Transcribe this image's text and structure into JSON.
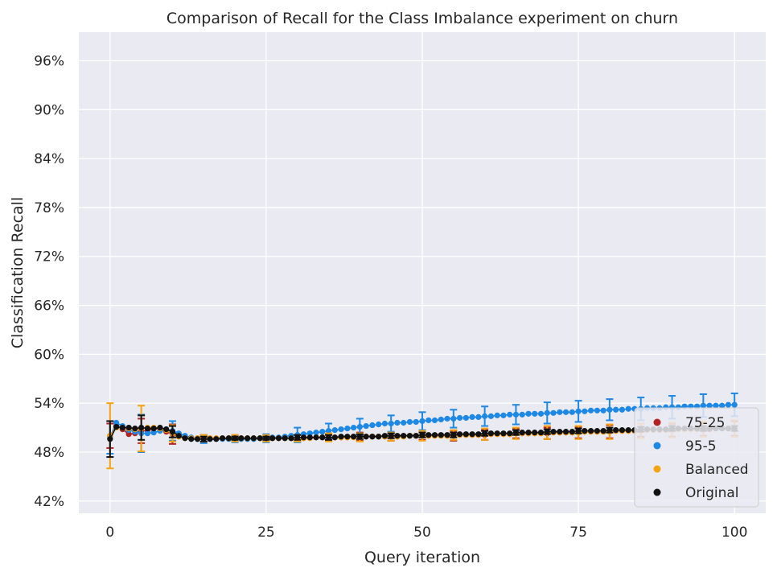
{
  "chart_data": {
    "type": "scatter",
    "title": "Comparison of Recall for the Class Imbalance experiment on churn",
    "xlabel": "Query iteration",
    "ylabel": "Classification Recall",
    "xlim": [
      -5,
      105
    ],
    "ylim": [
      40.5,
      99.5
    ],
    "x_ticks": [
      0,
      25,
      50,
      75,
      100
    ],
    "x_tick_labels": [
      "0",
      "25",
      "50",
      "75",
      "100"
    ],
    "y_ticks": [
      42,
      48,
      54,
      60,
      66,
      72,
      78,
      84,
      90,
      96
    ],
    "y_tick_labels": [
      "42%",
      "48%",
      "54%",
      "60%",
      "66%",
      "72%",
      "78%",
      "84%",
      "90%",
      "96%"
    ],
    "grid": true,
    "legend_position": "bottom-right",
    "x": [
      0,
      1,
      2,
      3,
      4,
      5,
      6,
      7,
      8,
      9,
      10,
      11,
      12,
      13,
      14,
      15,
      16,
      17,
      18,
      19,
      20,
      21,
      22,
      23,
      24,
      25,
      26,
      27,
      28,
      29,
      30,
      31,
      32,
      33,
      34,
      35,
      36,
      37,
      38,
      39,
      40,
      41,
      42,
      43,
      44,
      45,
      46,
      47,
      48,
      49,
      50,
      51,
      52,
      53,
      54,
      55,
      56,
      57,
      58,
      59,
      60,
      61,
      62,
      63,
      64,
      65,
      66,
      67,
      68,
      69,
      70,
      71,
      72,
      73,
      74,
      75,
      76,
      77,
      78,
      79,
      80,
      81,
      82,
      83,
      84,
      85,
      86,
      87,
      88,
      89,
      90,
      91,
      92,
      93,
      94,
      95,
      96,
      97,
      98,
      99,
      100
    ],
    "series": [
      {
        "name": "75-25",
        "color": "#b22222",
        "values": [
          50.0,
          51.2,
          50.8,
          50.2,
          50.3,
          50.6,
          50.6,
          50.9,
          50.8,
          50.5,
          50.2,
          49.9,
          49.8,
          49.7,
          49.7,
          49.7,
          49.7,
          49.7,
          49.7,
          49.7,
          49.7,
          49.7,
          49.7,
          49.7,
          49.7,
          49.7,
          49.7,
          49.7,
          49.7,
          49.7,
          49.7,
          49.7,
          49.8,
          49.8,
          49.8,
          49.8,
          49.8,
          49.8,
          49.8,
          49.9,
          49.9,
          49.9,
          49.9,
          49.9,
          49.9,
          49.9,
          49.9,
          50.0,
          50.0,
          50.0,
          50.0,
          50.0,
          50.0,
          50.0,
          50.0,
          50.0,
          50.1,
          50.1,
          50.1,
          50.1,
          50.1,
          50.2,
          50.2,
          50.2,
          50.2,
          50.3,
          50.3,
          50.3,
          50.3,
          50.3,
          50.3,
          50.4,
          50.4,
          50.4,
          50.4,
          50.4,
          50.5,
          50.5,
          50.5,
          50.5,
          50.5,
          50.6,
          50.6,
          50.6,
          50.6,
          50.7,
          50.7,
          50.7,
          50.7,
          50.7,
          50.7,
          50.8,
          50.8,
          50.8,
          50.8,
          50.8,
          50.8,
          50.9,
          50.9,
          50.9,
          50.9
        ],
        "err": [
          1.5,
          0,
          0,
          0,
          0,
          1.5,
          0,
          0,
          0,
          0,
          1.2,
          0,
          0,
          0,
          0,
          0.4,
          0,
          0,
          0,
          0,
          0.4,
          0,
          0,
          0,
          0,
          0.4,
          0,
          0,
          0,
          0,
          0.4,
          0,
          0,
          0,
          0,
          0.4,
          0,
          0,
          0,
          0,
          0.5,
          0,
          0,
          0,
          0,
          0.5,
          0,
          0,
          0,
          0,
          0.5,
          0,
          0,
          0,
          0,
          0.6,
          0,
          0,
          0,
          0,
          0.6,
          0,
          0,
          0,
          0,
          0.6,
          0,
          0,
          0,
          0,
          0.7,
          0,
          0,
          0,
          0,
          0.7,
          0,
          0,
          0,
          0,
          0.8,
          0,
          0,
          0,
          0,
          0.8,
          0,
          0,
          0,
          0,
          0.8,
          0,
          0,
          0,
          0,
          0.8,
          0,
          0,
          0,
          0,
          0.9
        ]
      },
      {
        "name": "95-5",
        "color": "#1e88e5",
        "values": [
          49.8,
          51.6,
          51.2,
          50.7,
          50.5,
          50.3,
          50.3,
          50.4,
          50.6,
          50.8,
          50.6,
          50.3,
          50.0,
          49.8,
          49.6,
          49.6,
          49.6,
          49.6,
          49.6,
          49.6,
          49.6,
          49.6,
          49.6,
          49.6,
          49.7,
          49.7,
          49.8,
          49.8,
          49.9,
          50.0,
          50.1,
          50.2,
          50.3,
          50.4,
          50.5,
          50.6,
          50.7,
          50.8,
          50.9,
          51.0,
          51.1,
          51.2,
          51.3,
          51.4,
          51.5,
          51.5,
          51.6,
          51.6,
          51.7,
          51.7,
          51.8,
          51.9,
          51.9,
          52.0,
          52.1,
          52.1,
          52.2,
          52.2,
          52.3,
          52.3,
          52.4,
          52.4,
          52.5,
          52.5,
          52.6,
          52.6,
          52.6,
          52.7,
          52.7,
          52.7,
          52.8,
          52.8,
          52.9,
          52.9,
          52.9,
          53.0,
          53.0,
          53.1,
          53.1,
          53.1,
          53.2,
          53.2,
          53.2,
          53.3,
          53.3,
          53.3,
          53.4,
          53.4,
          53.4,
          53.5,
          53.5,
          53.5,
          53.6,
          53.6,
          53.6,
          53.7,
          53.7,
          53.7,
          53.7,
          53.8,
          53.8
        ],
        "err": [
          2.0,
          0,
          0,
          0,
          0,
          2.3,
          0,
          0,
          0,
          0,
          1.2,
          0,
          0,
          0,
          0,
          0.5,
          0,
          0,
          0,
          0,
          0.4,
          0,
          0,
          0,
          0,
          0.5,
          0,
          0,
          0,
          0,
          0.9,
          0,
          0,
          0,
          0,
          0.9,
          0,
          0,
          0,
          0,
          1.0,
          0,
          0,
          0,
          0,
          1.0,
          0,
          0,
          0,
          0,
          1.1,
          0,
          0,
          0,
          0,
          1.1,
          0,
          0,
          0,
          0,
          1.2,
          0,
          0,
          0,
          0,
          1.2,
          0,
          0,
          0,
          0,
          1.3,
          0,
          0,
          0,
          0,
          1.3,
          0,
          0,
          0,
          0,
          1.3,
          0,
          0,
          0,
          0,
          1.4,
          0,
          0,
          0,
          0,
          1.4,
          0,
          0,
          0,
          0,
          1.4,
          0,
          0,
          0,
          0,
          1.4
        ]
      },
      {
        "name": "Balanced",
        "color": "#f5a30f",
        "values": [
          50.0,
          51.0,
          51.0,
          50.9,
          50.8,
          50.9,
          51.0,
          51.0,
          50.9,
          50.7,
          50.3,
          49.9,
          49.7,
          49.7,
          49.7,
          49.7,
          49.7,
          49.7,
          49.7,
          49.7,
          49.7,
          49.7,
          49.7,
          49.7,
          49.7,
          49.7,
          49.7,
          49.7,
          49.7,
          49.7,
          49.7,
          49.7,
          49.7,
          49.8,
          49.8,
          49.8,
          49.8,
          49.8,
          49.8,
          49.8,
          49.8,
          49.9,
          49.9,
          49.9,
          49.9,
          49.9,
          49.9,
          49.9,
          50.0,
          50.0,
          50.0,
          50.0,
          50.0,
          50.0,
          50.0,
          50.1,
          50.1,
          50.1,
          50.1,
          50.1,
          50.2,
          50.2,
          50.2,
          50.2,
          50.2,
          50.3,
          50.3,
          50.3,
          50.3,
          50.3,
          50.4,
          50.4,
          50.4,
          50.4,
          50.4,
          50.4,
          50.5,
          50.5,
          50.5,
          50.5,
          50.5,
          50.6,
          50.6,
          50.6,
          50.6,
          50.6,
          50.7,
          50.7,
          50.7,
          50.7,
          50.7,
          50.8,
          50.8,
          50.8,
          50.8,
          50.8,
          50.9,
          50.9,
          50.9,
          50.9,
          50.9
        ],
        "err": [
          4.0,
          0,
          0,
          0,
          0,
          2.8,
          0,
          0,
          0,
          0,
          1.0,
          0,
          0,
          0,
          0,
          0.4,
          0,
          0,
          0,
          0,
          0.4,
          0,
          0,
          0,
          0,
          0.4,
          0,
          0,
          0,
          0,
          0.4,
          0,
          0,
          0,
          0,
          0.5,
          0,
          0,
          0,
          0,
          0.5,
          0,
          0,
          0,
          0,
          0.5,
          0,
          0,
          0,
          0,
          0.6,
          0,
          0,
          0,
          0,
          0.6,
          0,
          0,
          0,
          0,
          0.7,
          0,
          0,
          0,
          0,
          0.7,
          0,
          0,
          0,
          0,
          0.8,
          0,
          0,
          0,
          0,
          0.8,
          0,
          0,
          0,
          0,
          0.9,
          0,
          0,
          0,
          0,
          0.9,
          0,
          0,
          0,
          0,
          0.9,
          0,
          0,
          0,
          0,
          0.9,
          0,
          0,
          0,
          0,
          1.0
        ]
      },
      {
        "name": "Original",
        "color": "#111111",
        "values": [
          49.6,
          51.1,
          51.0,
          51.0,
          50.9,
          51.0,
          50.9,
          50.9,
          51.0,
          50.8,
          50.5,
          50.0,
          49.7,
          49.6,
          49.6,
          49.6,
          49.6,
          49.6,
          49.7,
          49.7,
          49.7,
          49.7,
          49.7,
          49.7,
          49.7,
          49.7,
          49.7,
          49.7,
          49.7,
          49.7,
          49.8,
          49.8,
          49.8,
          49.8,
          49.8,
          49.8,
          49.8,
          49.9,
          49.9,
          49.9,
          49.9,
          49.9,
          49.9,
          49.9,
          50.0,
          50.0,
          50.0,
          50.0,
          50.0,
          50.0,
          50.1,
          50.1,
          50.1,
          50.1,
          50.1,
          50.1,
          50.2,
          50.2,
          50.2,
          50.2,
          50.3,
          50.3,
          50.3,
          50.3,
          50.3,
          50.4,
          50.4,
          50.4,
          50.4,
          50.4,
          50.5,
          50.5,
          50.5,
          50.5,
          50.5,
          50.6,
          50.6,
          50.6,
          50.6,
          50.6,
          50.7,
          50.7,
          50.7,
          50.7,
          50.7,
          50.8,
          50.8,
          50.8,
          50.8,
          50.8,
          50.9,
          50.9,
          50.9,
          50.9,
          50.9,
          50.9,
          50.9,
          50.9,
          50.9,
          50.9,
          50.9
        ],
        "err": [
          2.2,
          0,
          0,
          0,
          0,
          1.5,
          0,
          0,
          0,
          0,
          0.7,
          0,
          0,
          0,
          0,
          0.3,
          0,
          0,
          0,
          0,
          0.2,
          0,
          0,
          0,
          0,
          0.2,
          0,
          0,
          0,
          0,
          0.3,
          0,
          0,
          0,
          0,
          0.3,
          0,
          0,
          0,
          0,
          0.3,
          0,
          0,
          0,
          0,
          0.3,
          0,
          0,
          0,
          0,
          0.3,
          0,
          0,
          0,
          0,
          0.3,
          0,
          0,
          0,
          0,
          0.3,
          0,
          0,
          0,
          0,
          0.3,
          0,
          0,
          0,
          0,
          0.3,
          0,
          0,
          0,
          0,
          0.3,
          0,
          0,
          0,
          0,
          0.3,
          0,
          0,
          0,
          0,
          0.3,
          0,
          0,
          0,
          0,
          0.3,
          0,
          0,
          0,
          0,
          0.3,
          0,
          0,
          0,
          0,
          0.3
        ]
      }
    ]
  }
}
